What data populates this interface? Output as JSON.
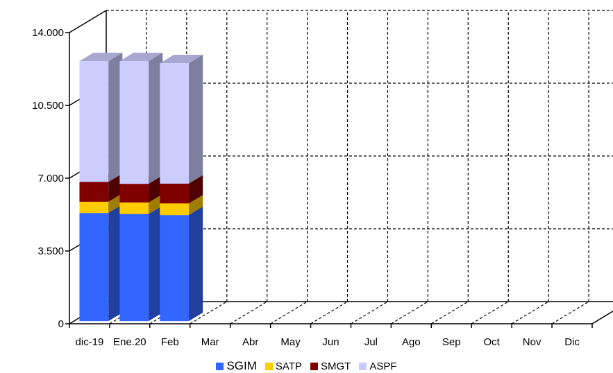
{
  "chart_data": {
    "type": "bar",
    "stacked": true,
    "three_d": true,
    "categories": [
      "dic-19",
      "Ene.20",
      "Feb",
      "Mar",
      "Abr",
      "May",
      "Jun",
      "Jul",
      "Ago",
      "Sep",
      "Oct",
      "Nov",
      "Dic"
    ],
    "series": [
      {
        "name": "SGIM",
        "color": "#3366FF",
        "values": [
          5200,
          5150,
          5100,
          null,
          null,
          null,
          null,
          null,
          null,
          null,
          null,
          null,
          null
        ]
      },
      {
        "name": "SATP",
        "color": "#FFCC00",
        "values": [
          540,
          550,
          560,
          null,
          null,
          null,
          null,
          null,
          null,
          null,
          null,
          null,
          null
        ]
      },
      {
        "name": "SMGT",
        "color": "#800000",
        "values": [
          950,
          900,
          950,
          null,
          null,
          null,
          null,
          null,
          null,
          null,
          null,
          null,
          null
        ]
      },
      {
        "name": "ASPF",
        "color": "#CCCCFF",
        "values": [
          5810,
          5900,
          5790,
          null,
          null,
          null,
          null,
          null,
          null,
          null,
          null,
          null,
          null
        ]
      }
    ],
    "yticks": [
      "0",
      "3.500",
      "7.000",
      "10.500",
      "14.000"
    ],
    "ylim": [
      0,
      14000
    ],
    "grid": true,
    "legend_position": "bottom"
  }
}
